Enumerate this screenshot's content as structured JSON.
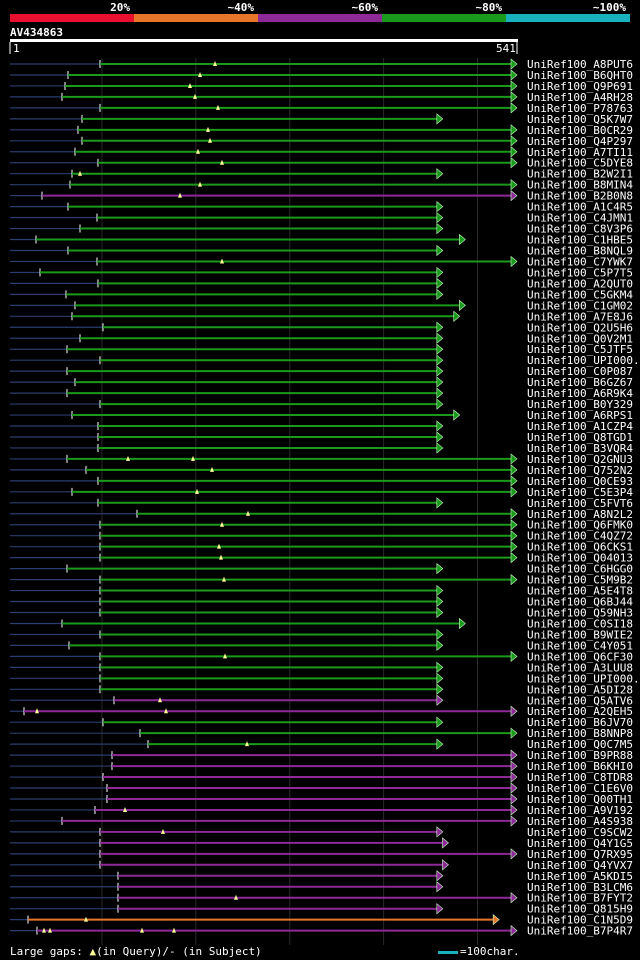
{
  "chart_data": {
    "type": "alignment-overview",
    "query_id": "AV434863",
    "query_start": 1,
    "query_end": 541,
    "identity_legend": [
      {
        "label": "20%",
        "color": "#e8102e"
      },
      {
        "label": "~40%",
        "color": "#e8762a"
      },
      {
        "label": "~60%",
        "color": "#8e2a97"
      },
      {
        "label": "~80%",
        "color": "#1a9a1a"
      },
      {
        "label": "~100%",
        "color": "#17b2bd"
      }
    ],
    "footer": {
      "gaps_text": "Large gaps: ",
      "query_text": "(in Query)/",
      "subject_text": "- (in Subject)",
      "scale_text": "=100char."
    },
    "hits": [
      {
        "id": "UniRef100_A8PUT6",
        "start": 1,
        "end": 541,
        "color": "#1a9a1a",
        "aln_start": 100,
        "arrow": "green",
        "ins": [
          215
        ]
      },
      {
        "id": "UniRef100_B6QHT0",
        "start": 1,
        "end": 541,
        "color": "#1a9a1a",
        "aln_start": 68,
        "ins": [
          200
        ]
      },
      {
        "id": "UniRef100_Q9P691",
        "start": 1,
        "end": 541,
        "color": "#1a9a1a",
        "aln_start": 65,
        "ins": [
          190
        ]
      },
      {
        "id": "UniRef100_A4RH28",
        "start": 1,
        "end": 541,
        "color": "#1a9a1a",
        "aln_start": 62,
        "ins": [
          195
        ]
      },
      {
        "id": "UniRef100_P78763",
        "start": 1,
        "end": 541,
        "color": "#1a9a1a",
        "aln_start": 100,
        "ins": [
          218
        ]
      },
      {
        "id": "UniRef100_Q5K7W7",
        "start": 1,
        "end": 462,
        "color": "#1a9a1a",
        "aln_start": 82,
        "ins": []
      },
      {
        "id": "UniRef100_B0CR29",
        "start": 1,
        "end": 541,
        "color": "#1a9a1a",
        "aln_start": 78,
        "ins": [
          208
        ]
      },
      {
        "id": "UniRef100_Q4P297",
        "start": 1,
        "end": 541,
        "color": "#1a9a1a",
        "aln_start": 82,
        "ins": [
          210
        ]
      },
      {
        "id": "UniRef100_A7TI11",
        "start": 1,
        "end": 541,
        "color": "#1a9a1a",
        "aln_start": 75,
        "ins": [
          198
        ]
      },
      {
        "id": "UniRef100_C5DYE8",
        "start": 1,
        "end": 541,
        "color": "#1a9a1a",
        "aln_start": 98,
        "ins": [
          222
        ]
      },
      {
        "id": "UniRef100_B2W2I1",
        "start": 1,
        "end": 462,
        "color": "#1a9a1a",
        "aln_start": 72,
        "ins": [
          80
        ]
      },
      {
        "id": "UniRef100_B8MIN4",
        "start": 1,
        "end": 541,
        "color": "#1a9a1a",
        "aln_start": 70,
        "ins": [
          200
        ]
      },
      {
        "id": "UniRef100_B2B0N8",
        "start": 1,
        "end": 541,
        "color": "#8e2a97",
        "aln_start": 42,
        "ins": [
          180
        ]
      },
      {
        "id": "UniRef100_A1C4R5",
        "start": 1,
        "end": 462,
        "color": "#1a9a1a",
        "aln_start": 68,
        "ins": []
      },
      {
        "id": "UniRef100_C4JMN1",
        "start": 1,
        "end": 462,
        "color": "#1a9a1a",
        "aln_start": 97,
        "ins": []
      },
      {
        "id": "UniRef100_C8V3P6",
        "start": 1,
        "end": 462,
        "color": "#1a9a1a",
        "aln_start": 80,
        "ins": []
      },
      {
        "id": "UniRef100_C1HBE5",
        "start": 1,
        "end": 486,
        "color": "#1a9a1a",
        "aln_start": 36,
        "ins": []
      },
      {
        "id": "UniRef100_B8NQL9",
        "start": 1,
        "end": 462,
        "color": "#1a9a1a",
        "aln_start": 68,
        "ins": []
      },
      {
        "id": "UniRef100_C7YWK7",
        "start": 1,
        "end": 541,
        "color": "#1a9a1a",
        "aln_start": 97,
        "ins": [
          222
        ]
      },
      {
        "id": "UniRef100_C5P7T5",
        "start": 1,
        "end": 462,
        "color": "#1a9a1a",
        "aln_start": 40,
        "ins": []
      },
      {
        "id": "UniRef100_A2QUT0",
        "start": 1,
        "end": 462,
        "color": "#1a9a1a",
        "aln_start": 98,
        "ins": []
      },
      {
        "id": "UniRef100_C5GKM4",
        "start": 1,
        "end": 462,
        "color": "#1a9a1a",
        "aln_start": 66,
        "ins": []
      },
      {
        "id": "UniRef100_C1GM02",
        "start": 1,
        "end": 486,
        "color": "#1a9a1a",
        "aln_start": 75,
        "ins": []
      },
      {
        "id": "UniRef100_A7E8J6",
        "start": 1,
        "end": 480,
        "color": "#1a9a1a",
        "aln_start": 72,
        "ins": []
      },
      {
        "id": "UniRef100_Q2U5H6",
        "start": 1,
        "end": 462,
        "color": "#1a9a1a",
        "aln_start": 103,
        "ins": []
      },
      {
        "id": "UniRef100_Q0V2M1",
        "start": 1,
        "end": 462,
        "color": "#1a9a1a",
        "aln_start": 80,
        "ins": []
      },
      {
        "id": "UniRef100_C5JTF5",
        "start": 1,
        "end": 462,
        "color": "#1a9a1a",
        "aln_start": 67,
        "ins": []
      },
      {
        "id": "UniRef100_UPI000..",
        "start": 1,
        "end": 462,
        "color": "#1a9a1a",
        "aln_start": 100,
        "ins": []
      },
      {
        "id": "UniRef100_C0P087",
        "start": 1,
        "end": 462,
        "color": "#1a9a1a",
        "aln_start": 67,
        "ins": []
      },
      {
        "id": "UniRef100_B6GZ67",
        "start": 1,
        "end": 462,
        "color": "#1a9a1a",
        "aln_start": 75,
        "ins": []
      },
      {
        "id": "UniRef100_A6R9K4",
        "start": 1,
        "end": 462,
        "color": "#1a9a1a",
        "aln_start": 67,
        "ins": []
      },
      {
        "id": "UniRef100_B0Y329",
        "start": 1,
        "end": 462,
        "color": "#1a9a1a",
        "aln_start": 100,
        "ins": []
      },
      {
        "id": "UniRef100_A6RPS1",
        "start": 1,
        "end": 480,
        "color": "#1a9a1a",
        "aln_start": 72,
        "ins": []
      },
      {
        "id": "UniRef100_A1CZP4",
        "start": 1,
        "end": 462,
        "color": "#1a9a1a",
        "aln_start": 98,
        "ins": []
      },
      {
        "id": "UniRef100_Q8TGD1",
        "start": 1,
        "end": 462,
        "color": "#1a9a1a",
        "aln_start": 98,
        "ins": []
      },
      {
        "id": "UniRef100_B3VQR4",
        "start": 1,
        "end": 462,
        "color": "#1a9a1a",
        "aln_start": 98,
        "ins": []
      },
      {
        "id": "UniRef100_Q2GNU3",
        "start": 1,
        "end": 541,
        "color": "#1a9a1a",
        "aln_start": 67,
        "ins": [
          128,
          193
        ]
      },
      {
        "id": "UniRef100_Q752N2",
        "start": 1,
        "end": 541,
        "color": "#1a9a1a",
        "aln_start": 86,
        "ins": [
          212
        ]
      },
      {
        "id": "UniRef100_Q0CE93",
        "start": 1,
        "end": 541,
        "color": "#1a9a1a",
        "aln_start": 98,
        "ins": []
      },
      {
        "id": "UniRef100_C5E3P4",
        "start": 1,
        "end": 541,
        "color": "#1a9a1a",
        "aln_start": 72,
        "ins": [
          197
        ]
      },
      {
        "id": "UniRef100_C5FVT6",
        "start": 1,
        "end": 462,
        "color": "#1a9a1a",
        "aln_start": 98,
        "ins": []
      },
      {
        "id": "UniRef100_A8N2L2",
        "start": 1,
        "end": 541,
        "color": "#1a9a1a",
        "aln_start": 137,
        "ins": [
          248
        ]
      },
      {
        "id": "UniRef100_Q6FMK0",
        "start": 1,
        "end": 541,
        "color": "#1a9a1a",
        "aln_start": 100,
        "ins": [
          222
        ]
      },
      {
        "id": "UniRef100_C4QZ72",
        "start": 1,
        "end": 541,
        "color": "#1a9a1a",
        "aln_start": 100,
        "ins": []
      },
      {
        "id": "UniRef100_Q6CKS1",
        "start": 1,
        "end": 541,
        "color": "#1a9a1a",
        "aln_start": 100,
        "ins": [
          219
        ]
      },
      {
        "id": "UniRef100_Q04013",
        "start": 1,
        "end": 541,
        "color": "#1a9a1a",
        "aln_start": 100,
        "ins": [
          221
        ]
      },
      {
        "id": "UniRef100_C6HGG0",
        "start": 1,
        "end": 462,
        "color": "#1a9a1a",
        "aln_start": 67,
        "ins": []
      },
      {
        "id": "UniRef100_C5M9B2",
        "start": 1,
        "end": 541,
        "color": "#1a9a1a",
        "aln_start": 100,
        "ins": [
          224
        ]
      },
      {
        "id": "UniRef100_A5E4T8",
        "start": 1,
        "end": 462,
        "color": "#1a9a1a",
        "aln_start": 100,
        "ins": []
      },
      {
        "id": "UniRef100_Q6BJ44",
        "start": 1,
        "end": 462,
        "color": "#1a9a1a",
        "aln_start": 100,
        "ins": []
      },
      {
        "id": "UniRef100_Q59NH3",
        "start": 1,
        "end": 462,
        "color": "#1a9a1a",
        "aln_start": 100,
        "ins": []
      },
      {
        "id": "UniRef100_C0SI18",
        "start": 1,
        "end": 486,
        "color": "#1a9a1a",
        "aln_start": 62,
        "ins": []
      },
      {
        "id": "UniRef100_B9WIE2",
        "start": 1,
        "end": 462,
        "color": "#1a9a1a",
        "aln_start": 100,
        "ins": []
      },
      {
        "id": "UniRef100_C4Y051",
        "start": 1,
        "end": 462,
        "color": "#1a9a1a",
        "aln_start": 69,
        "ins": []
      },
      {
        "id": "UniRef100_Q6CF30",
        "start": 1,
        "end": 541,
        "color": "#1a9a1a",
        "aln_start": 100,
        "ins": [
          225
        ]
      },
      {
        "id": "UniRef100_A3LUU8",
        "start": 1,
        "end": 462,
        "color": "#1a9a1a",
        "aln_start": 100,
        "ins": []
      },
      {
        "id": "UniRef100_UPI000..",
        "start": 1,
        "end": 462,
        "color": "#1a9a1a",
        "aln_start": 100,
        "ins": []
      },
      {
        "id": "UniRef100_A5DI28",
        "start": 1,
        "end": 462,
        "color": "#1a9a1a",
        "aln_start": 100,
        "ins": []
      },
      {
        "id": "UniRef100_Q5ATV6",
        "start": 1,
        "end": 462,
        "color": "#8e2a97",
        "aln_start": 114,
        "ins": [
          160
        ]
      },
      {
        "id": "UniRef100_A2QEH5",
        "start": 1,
        "end": 541,
        "color": "#8e2a97",
        "aln_start": 24,
        "ins": [
          37,
          166
        ]
      },
      {
        "id": "UniRef100_B6JV70",
        "start": 1,
        "end": 462,
        "color": "#1a9a1a",
        "aln_start": 103,
        "ins": []
      },
      {
        "id": "UniRef100_B8NNP8",
        "start": 1,
        "end": 541,
        "color": "#1a9a1a",
        "aln_start": 140,
        "ins": []
      },
      {
        "id": "UniRef100_Q0C7M5",
        "start": 1,
        "end": 462,
        "color": "#1a9a1a",
        "aln_start": 148,
        "ins": [
          247
        ]
      },
      {
        "id": "UniRef100_B9PR88",
        "start": 1,
        "end": 541,
        "color": "#8e2a97",
        "aln_start": 112,
        "ins": []
      },
      {
        "id": "UniRef100_B6KHI0",
        "start": 1,
        "end": 541,
        "color": "#8e2a97",
        "aln_start": 112,
        "ins": []
      },
      {
        "id": "UniRef100_C8TDR8",
        "start": 1,
        "end": 541,
        "color": "#8e2a97",
        "aln_start": 103,
        "ins": []
      },
      {
        "id": "UniRef100_C1E6V0",
        "start": 1,
        "end": 541,
        "color": "#8e2a97",
        "aln_start": 107,
        "ins": []
      },
      {
        "id": "UniRef100_Q00TH1",
        "start": 1,
        "end": 541,
        "color": "#8e2a97",
        "aln_start": 107,
        "ins": []
      },
      {
        "id": "UniRef100_A9V192",
        "start": 1,
        "end": 541,
        "color": "#8e2a97",
        "aln_start": 95,
        "ins": [
          125
        ]
      },
      {
        "id": "UniRef100_A4S938",
        "start": 1,
        "end": 541,
        "color": "#8e2a97",
        "aln_start": 62,
        "ins": []
      },
      {
        "id": "UniRef100_C9SCW2",
        "start": 1,
        "end": 462,
        "color": "#8e2a97",
        "aln_start": 100,
        "ins": [
          163
        ]
      },
      {
        "id": "UniRef100_Q4Y1G5",
        "start": 1,
        "end": 468,
        "color": "#8e2a97",
        "aln_start": 100,
        "ins": []
      },
      {
        "id": "UniRef100_Q7RX95",
        "start": 1,
        "end": 541,
        "color": "#8e2a97",
        "aln_start": 100,
        "ins": []
      },
      {
        "id": "UniRef100_Q4YVX7",
        "start": 1,
        "end": 468,
        "color": "#8e2a97",
        "aln_start": 100,
        "ins": []
      },
      {
        "id": "UniRef100_A5KDI5",
        "start": 1,
        "end": 462,
        "color": "#8e2a97",
        "aln_start": 118,
        "ins": []
      },
      {
        "id": "UniRef100_B3LCM6",
        "start": 1,
        "end": 462,
        "color": "#8e2a97",
        "aln_start": 118,
        "ins": []
      },
      {
        "id": "UniRef100_B7FYT2",
        "start": 1,
        "end": 541,
        "color": "#8e2a97",
        "aln_start": 118,
        "ins": [
          236
        ]
      },
      {
        "id": "UniRef100_Q815H9",
        "start": 1,
        "end": 462,
        "color": "#8e2a97",
        "aln_start": 118,
        "ins": []
      },
      {
        "id": "UniRef100_C1N5D9",
        "start": 1,
        "end": 522,
        "color": "#e8762a",
        "aln_start": 28,
        "ins": [
          86
        ]
      },
      {
        "id": "UniRef100_B7P4R7",
        "start": 1,
        "end": 541,
        "color": "#8e2a97",
        "aln_start": 37,
        "ins": [
          44,
          50,
          142,
          174
        ]
      }
    ]
  }
}
